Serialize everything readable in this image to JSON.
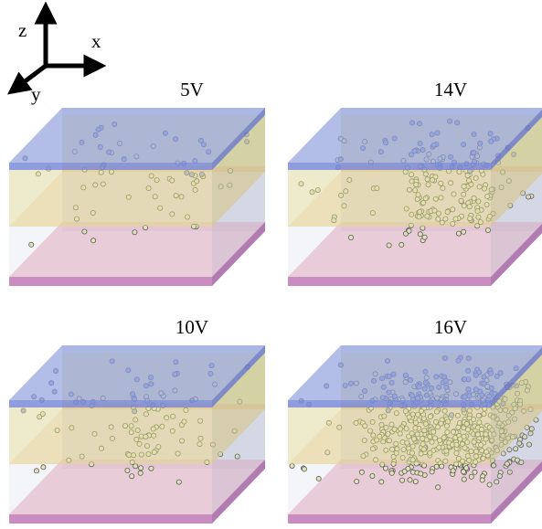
{
  "axes": {
    "z": "z",
    "x": "x",
    "y": "y"
  },
  "panels": [
    {
      "label": "5V"
    },
    {
      "label": "14V"
    },
    {
      "label": "10V"
    },
    {
      "label": "16V"
    }
  ]
}
